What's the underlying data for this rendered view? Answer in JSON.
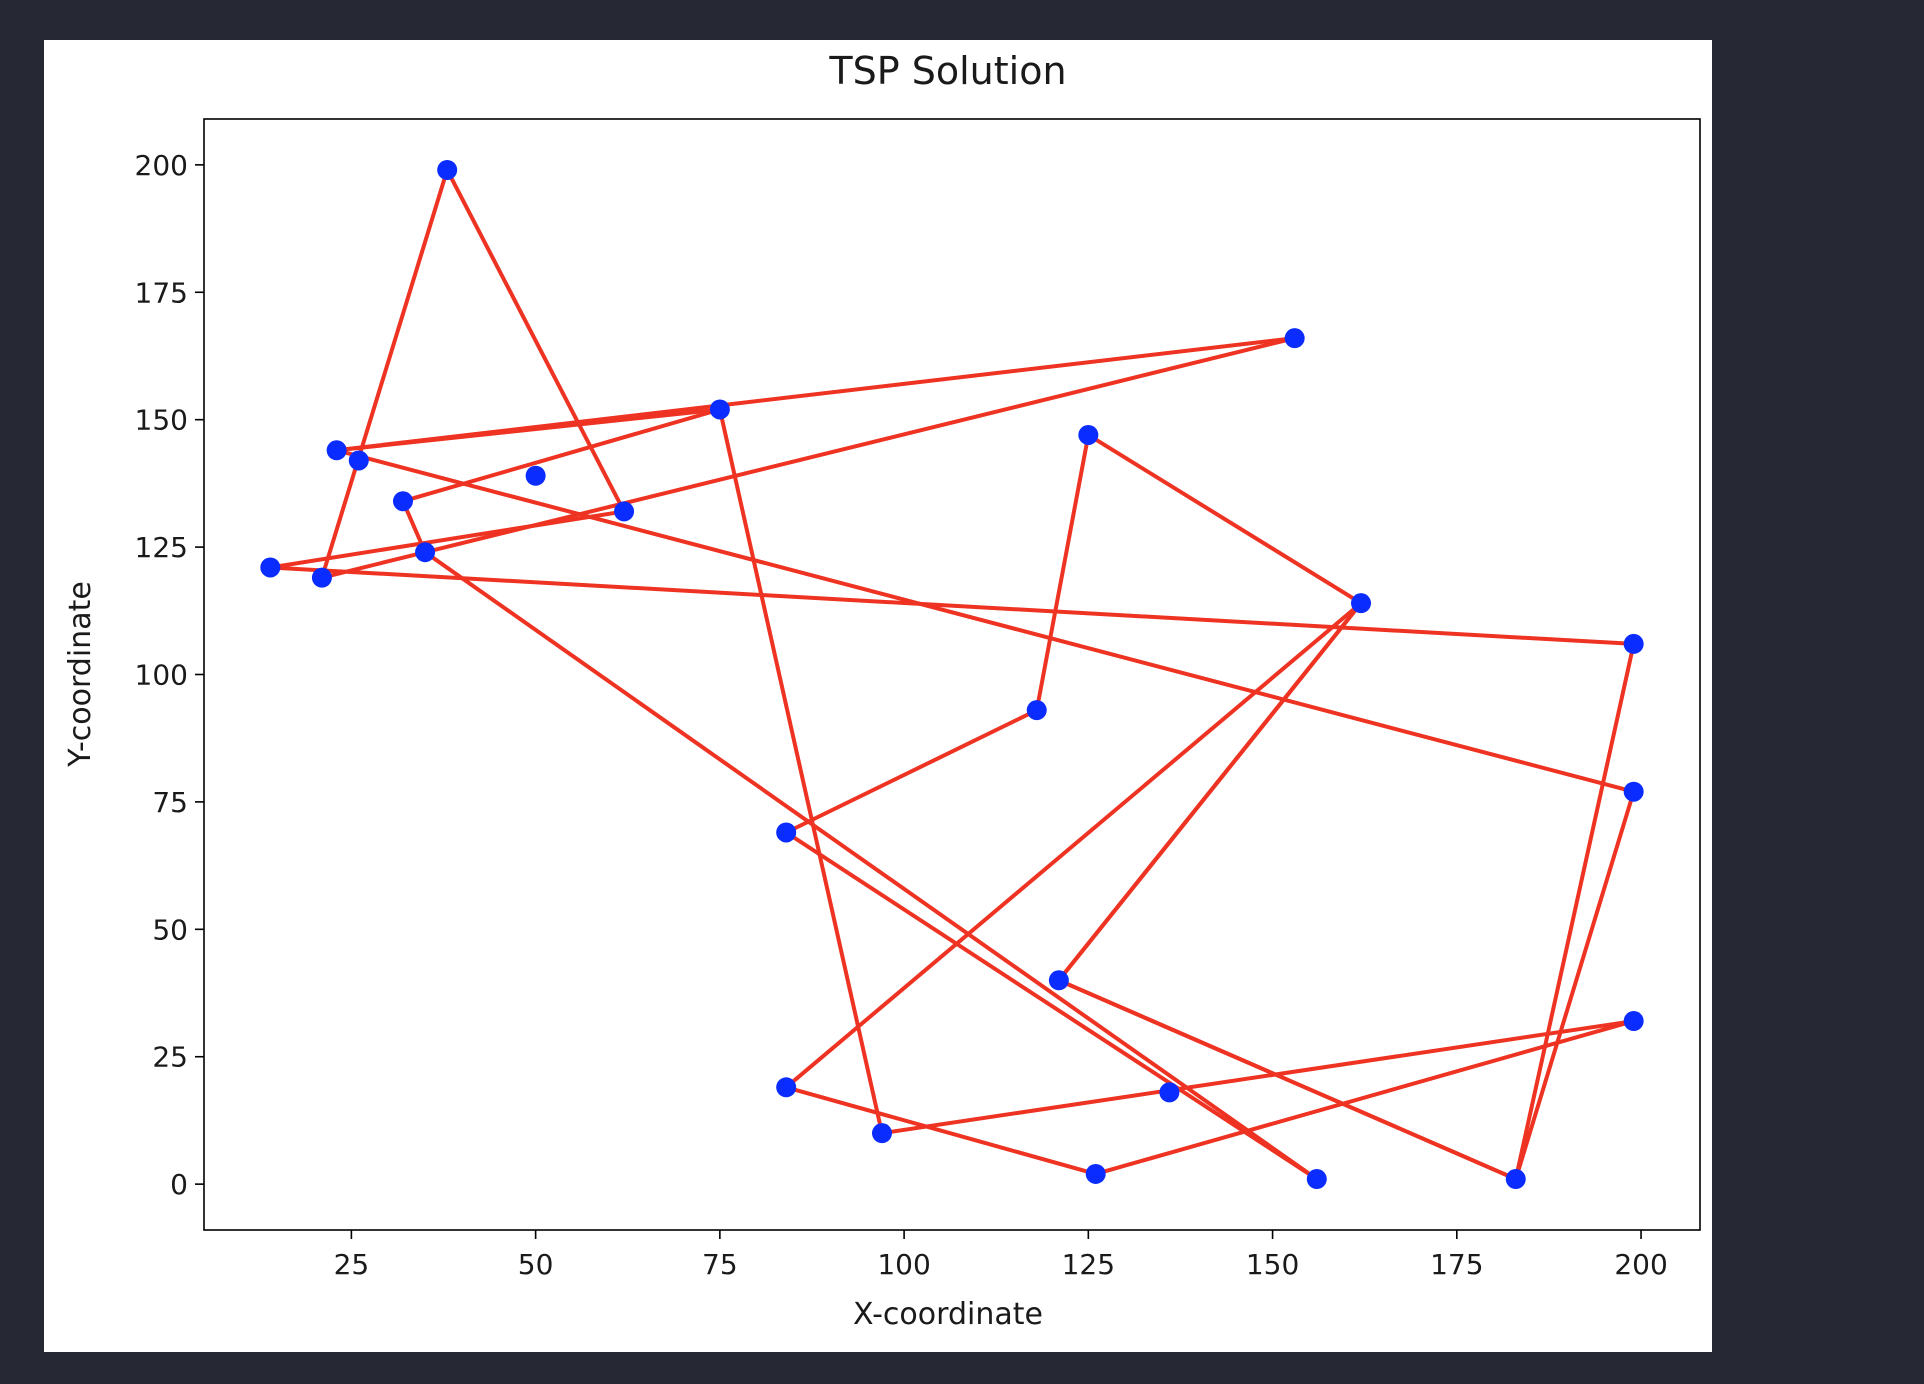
{
  "chart_data": {
    "type": "scatter",
    "title": "TSP Solution",
    "xlabel": "X-coordinate",
    "ylabel": "Y-coordinate",
    "xlim": [
      5,
      208
    ],
    "ylim": [
      -9,
      209
    ],
    "xticks": [
      25,
      50,
      75,
      100,
      125,
      150,
      175,
      200
    ],
    "yticks": [
      0,
      25,
      50,
      75,
      100,
      125,
      150,
      175,
      200
    ],
    "grid": false,
    "point_color": "#0b2cff",
    "line_color": "#ee3322",
    "points": [
      {
        "x": 38,
        "y": 199
      },
      {
        "x": 153,
        "y": 166
      },
      {
        "x": 75,
        "y": 152
      },
      {
        "x": 125,
        "y": 147
      },
      {
        "x": 23,
        "y": 144
      },
      {
        "x": 26,
        "y": 142
      },
      {
        "x": 50,
        "y": 139
      },
      {
        "x": 32,
        "y": 134
      },
      {
        "x": 62,
        "y": 132
      },
      {
        "x": 35,
        "y": 124
      },
      {
        "x": 14,
        "y": 121
      },
      {
        "x": 21,
        "y": 119
      },
      {
        "x": 162,
        "y": 114
      },
      {
        "x": 199,
        "y": 106
      },
      {
        "x": 118,
        "y": 93
      },
      {
        "x": 199,
        "y": 77
      },
      {
        "x": 84,
        "y": 69
      },
      {
        "x": 121,
        "y": 40
      },
      {
        "x": 199,
        "y": 32
      },
      {
        "x": 84,
        "y": 19
      },
      {
        "x": 136,
        "y": 18
      },
      {
        "x": 97,
        "y": 10
      },
      {
        "x": 126,
        "y": 2
      },
      {
        "x": 156,
        "y": 1
      },
      {
        "x": 183,
        "y": 1
      }
    ],
    "route": [
      {
        "x": 23,
        "y": 144
      },
      {
        "x": 199,
        "y": 77
      },
      {
        "x": 183,
        "y": 1
      },
      {
        "x": 121,
        "y": 40
      },
      {
        "x": 162,
        "y": 114
      },
      {
        "x": 84,
        "y": 19
      },
      {
        "x": 126,
        "y": 2
      },
      {
        "x": 199,
        "y": 32
      },
      {
        "x": 97,
        "y": 10
      },
      {
        "x": 75,
        "y": 152
      },
      {
        "x": 23,
        "y": 144
      },
      {
        "x": 153,
        "y": 166
      },
      {
        "x": 21,
        "y": 119
      },
      {
        "x": 38,
        "y": 199
      },
      {
        "x": 62,
        "y": 132
      },
      {
        "x": 14,
        "y": 121
      },
      {
        "x": 199,
        "y": 106
      },
      {
        "x": 183,
        "y": 1
      },
      {
        "x": 121,
        "y": 40
      },
      {
        "x": 162,
        "y": 114
      },
      {
        "x": 125,
        "y": 147
      },
      {
        "x": 118,
        "y": 93
      },
      {
        "x": 84,
        "y": 69
      },
      {
        "x": 156,
        "y": 1
      },
      {
        "x": 35,
        "y": 124
      },
      {
        "x": 32,
        "y": 134
      },
      {
        "x": 75,
        "y": 152
      }
    ]
  }
}
